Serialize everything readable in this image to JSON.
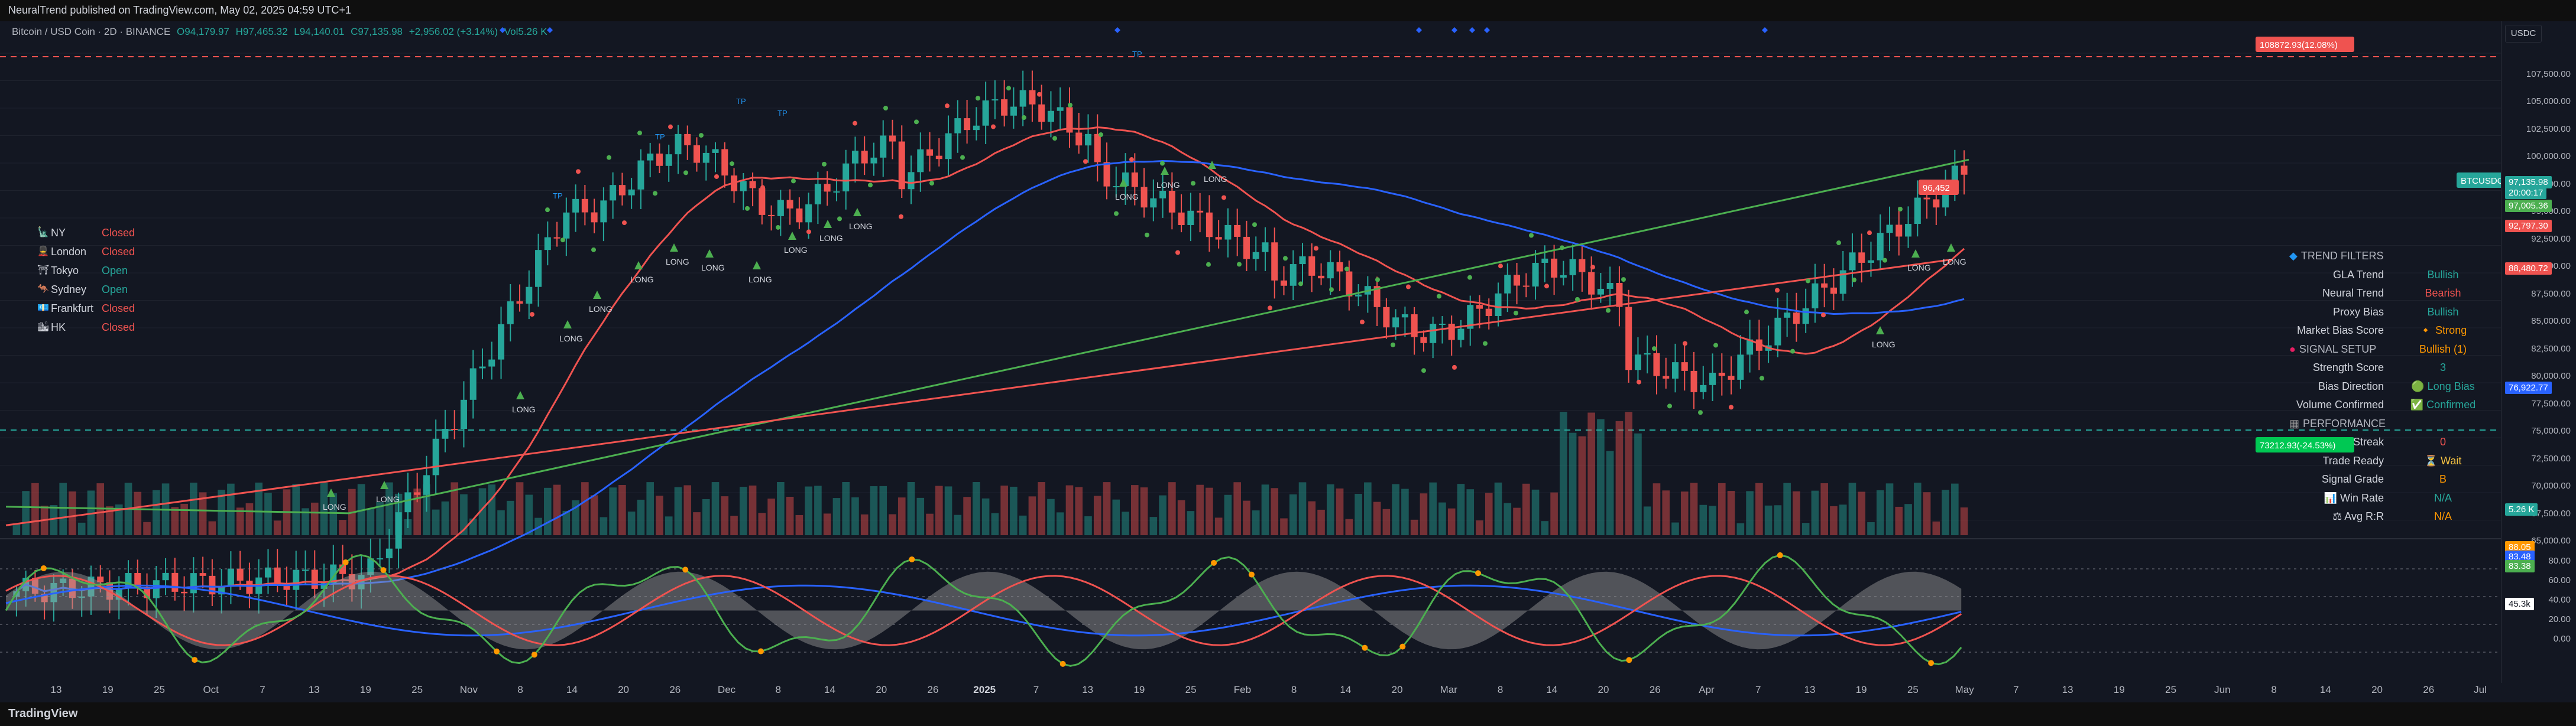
{
  "header": {
    "published": "NeuralTrend published on TradingView.com, May 02, 2025 04:59 UTC+1"
  },
  "legend": {
    "symbol": "Bitcoin / USD Coin · 2D · BINANCE",
    "open": "O94,179.97",
    "high": "H97,465.32",
    "low": "L94,140.01",
    "close": "C97,135.98",
    "change": "+2,956.02 (+3.14%)",
    "volume": "Vol5.26 K"
  },
  "currency_button": "USDC",
  "price_scale": {
    "ticks": [
      "107,500.00",
      "105,000.00",
      "102,500.00",
      "100,000.00",
      "97,500.00",
      "95,000.00",
      "92,500.00",
      "90,000.00",
      "87,500.00",
      "85,000.00",
      "82,500.00",
      "80,000.00",
      "77,500.00",
      "75,000.00",
      "72,500.00",
      "70,000.00",
      "67,500.00",
      "65,000.00"
    ],
    "tags": {
      "top_marker": "108872.93(12.08%)",
      "ticker": "BTCUSDC",
      "price": "97,135.98",
      "countdown": "20:00:17",
      "green_level": "97,005.36",
      "red1": "92,797.30",
      "red2": "88,480.72",
      "blue": "76,922.77",
      "low_marker": "73212.93(-24.53%)",
      "volume_tag": "5.26 K",
      "signal_tag": "96,452"
    }
  },
  "oscillator_scale": {
    "ticks": [
      "80.00",
      "60.00",
      "40.00",
      "20.00",
      "0.00"
    ],
    "tags": [
      "88.05",
      "83.48",
      "83.38",
      "45.3k"
    ]
  },
  "time_axis": [
    "13",
    "19",
    "25",
    "Oct",
    "7",
    "13",
    "19",
    "25",
    "Nov",
    "8",
    "14",
    "20",
    "26",
    "Dec",
    "8",
    "14",
    "20",
    "26",
    "2025",
    "7",
    "13",
    "19",
    "25",
    "Feb",
    "8",
    "14",
    "20",
    "Mar",
    "8",
    "14",
    "20",
    "26",
    "Apr",
    "7",
    "13",
    "19",
    "25",
    "May",
    "7",
    "13",
    "19",
    "25",
    "Jun",
    "8",
    "14",
    "20",
    "26",
    "Jul"
  ],
  "sessions": [
    {
      "flag": "🗽",
      "name": "NY",
      "status": "Closed",
      "open": false
    },
    {
      "flag": "💂",
      "name": "London",
      "status": "Closed",
      "open": false
    },
    {
      "flag": "⛩",
      "name": "Tokyo",
      "status": "Open",
      "open": true
    },
    {
      "flag": "🦘",
      "name": "Sydney",
      "status": "Open",
      "open": true
    },
    {
      "flag": "💶",
      "name": "Frankfurt",
      "status": "Closed",
      "open": false
    },
    {
      "flag": "🏙",
      "name": "HK",
      "status": "Closed",
      "open": false
    }
  ],
  "filters_panel": {
    "trend_filters_title": "TREND FILTERS",
    "rows_a": [
      {
        "label": "GLA Trend",
        "value": "Bullish",
        "cls": "green"
      },
      {
        "label": "Neural Trend",
        "value": "Bearish",
        "cls": "red"
      },
      {
        "label": "Proxy Bias",
        "value": "Bullish",
        "cls": "green"
      },
      {
        "label": "Market Bias Score",
        "value": "🔸 Strong Bullish (1)",
        "cls": "orange"
      }
    ],
    "signal_setup_title": "SIGNAL SETUP",
    "rows_b": [
      {
        "label": "Strength Score",
        "value": "3",
        "cls": "green"
      },
      {
        "label": "Bias Direction",
        "value": "🟢 Long Bias",
        "cls": "green"
      },
      {
        "label": "Volume Confirmed",
        "value": "✅ Confirmed",
        "cls": "green"
      }
    ],
    "performance_title": "PERFORMANCE",
    "rows_c": [
      {
        "label": "Streak",
        "value": "0",
        "cls": "red"
      },
      {
        "label": "Trade Ready",
        "value": "⏳ Wait",
        "cls": "yellow"
      },
      {
        "label": "Signal Grade",
        "value": "B",
        "cls": "orange"
      },
      {
        "label": "📊 Win Rate",
        "value": "N/A",
        "cls": "green"
      },
      {
        "label": "⚖ Avg R:R",
        "value": "N/A",
        "cls": "orange"
      }
    ]
  },
  "signal_label": "LONG",
  "tp_label": "TP",
  "footer": {
    "brand": "TradingView"
  },
  "colors": {
    "bull": "#26a69a",
    "bear": "#ef5350",
    "bg": "#131722"
  }
}
